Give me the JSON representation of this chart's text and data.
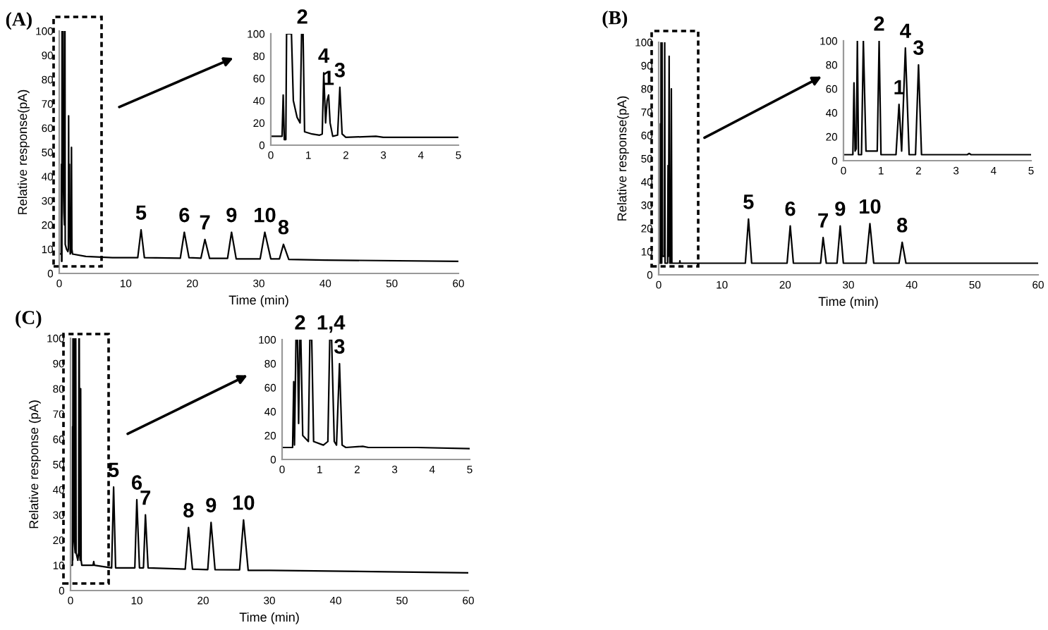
{
  "chart_data": [
    {
      "type": "line",
      "title": "(A)",
      "xlabel": "Time (min)",
      "ylabel": "Relative response(pA)",
      "color": "#000000",
      "xlim": [
        0,
        60
      ],
      "ylim": [
        0,
        100
      ],
      "xticks": [
        0,
        10,
        20,
        30,
        40,
        50,
        60
      ],
      "yticks": [
        0,
        10,
        20,
        30,
        40,
        50,
        60,
        70,
        80,
        90,
        100
      ],
      "x": [
        0,
        0.3,
        0.33,
        0.36,
        0.4,
        0.42,
        0.55,
        0.6,
        0.7,
        0.78,
        0.82,
        0.86,
        0.9,
        1.1,
        1.3,
        1.37,
        1.41,
        1.46,
        1.5,
        1.54,
        1.58,
        1.65,
        1.78,
        1.84,
        1.9,
        2.0,
        4,
        8,
        11.8,
        12.3,
        12.8,
        18.2,
        18.8,
        19.5,
        21.3,
        21.9,
        22.6,
        25.3,
        25.9,
        26.6,
        30.2,
        30.9,
        31.8,
        33.1,
        33.7,
        34.5,
        40,
        60
      ],
      "values": [
        8,
        8,
        45,
        5,
        5,
        100,
        100,
        40,
        25,
        20,
        100,
        100,
        12,
        10,
        9,
        10,
        65,
        20,
        40,
        45,
        20,
        8,
        9,
        52,
        10,
        8,
        7,
        6.5,
        6.5,
        18,
        6.5,
        6.3,
        17,
        6.5,
        6.3,
        14,
        6.2,
        6.2,
        17,
        6,
        6,
        17,
        6,
        6,
        12,
        5.8,
        5.5,
        5
      ],
      "annotations": [
        {
          "text": "5",
          "x": 12.3,
          "y": 18
        },
        {
          "text": "6",
          "x": 18.8,
          "y": 17
        },
        {
          "text": "7",
          "x": 21.9,
          "y": 14
        },
        {
          "text": "9",
          "x": 25.9,
          "y": 17
        },
        {
          "text": "10",
          "x": 30.9,
          "y": 17
        },
        {
          "text": "8",
          "x": 33.7,
          "y": 12
        }
      ]
    },
    {
      "type": "line",
      "color": "#000000",
      "xlim": [
        0,
        5
      ],
      "ylim": [
        0,
        100
      ],
      "xticks": [
        0,
        1,
        2,
        3,
        4,
        5
      ],
      "yticks": [
        0,
        20,
        40,
        60,
        80,
        100
      ],
      "x": [
        0,
        0.3,
        0.33,
        0.36,
        0.4,
        0.42,
        0.55,
        0.6,
        0.7,
        0.78,
        0.82,
        0.86,
        0.9,
        1.1,
        1.3,
        1.37,
        1.41,
        1.46,
        1.5,
        1.54,
        1.58,
        1.65,
        1.78,
        1.84,
        1.9,
        2.0,
        2.8,
        3,
        5
      ],
      "values": [
        8,
        8,
        45,
        5,
        5,
        100,
        100,
        40,
        25,
        20,
        100,
        100,
        12,
        10,
        9,
        10,
        65,
        20,
        40,
        45,
        20,
        8,
        9,
        52,
        10,
        7,
        8,
        7,
        7
      ],
      "annotations": [
        {
          "text": "2",
          "x": 0.84,
          "y": 100
        },
        {
          "text": "4",
          "x": 1.41,
          "y": 65
        },
        {
          "text": "1",
          "x": 1.54,
          "y": 45
        },
        {
          "text": "3",
          "x": 1.84,
          "y": 52
        }
      ]
    },
    {
      "type": "line",
      "title": "(B)",
      "xlabel": "Time (min)",
      "ylabel": "Relative response(pA)",
      "color": "#000000",
      "xlim": [
        0,
        60
      ],
      "ylim": [
        0,
        100
      ],
      "xticks": [
        0,
        10,
        20,
        30,
        40,
        50,
        60
      ],
      "yticks": [
        0,
        10,
        20,
        30,
        40,
        50,
        60,
        70,
        80,
        90,
        100
      ],
      "x": [
        0,
        0.25,
        0.28,
        0.31,
        0.34,
        0.37,
        0.4,
        0.48,
        0.53,
        0.6,
        0.9,
        0.95,
        1.0,
        1.4,
        1.48,
        1.55,
        1.65,
        1.75,
        1.92,
        2.0,
        2.08,
        3.3,
        3.35,
        3.4,
        13.7,
        14.2,
        14.7,
        20.3,
        20.8,
        21.3,
        25.6,
        26,
        26.5,
        28.2,
        28.7,
        29.2,
        32.8,
        33.4,
        34,
        38,
        38.5,
        39.1,
        60
      ],
      "values": [
        5,
        5,
        65,
        8,
        10,
        100,
        5,
        5,
        100,
        8,
        8,
        100,
        5,
        5,
        47,
        8,
        94,
        5,
        5,
        80,
        5,
        5,
        6,
        5,
        5,
        24,
        5,
        5,
        21,
        5,
        5,
        16,
        5,
        5,
        21,
        5,
        5,
        22,
        5,
        5,
        14,
        5,
        5
      ],
      "annotations": [
        {
          "text": "5",
          "x": 14.2,
          "y": 24
        },
        {
          "text": "6",
          "x": 20.8,
          "y": 21
        },
        {
          "text": "7",
          "x": 26,
          "y": 16
        },
        {
          "text": "9",
          "x": 28.7,
          "y": 21
        },
        {
          "text": "10",
          "x": 33.4,
          "y": 22
        },
        {
          "text": "8",
          "x": 38.5,
          "y": 14
        }
      ]
    },
    {
      "type": "line",
      "color": "#000000",
      "xlim": [
        0,
        5
      ],
      "ylim": [
        0,
        100
      ],
      "xticks": [
        0,
        1,
        2,
        3,
        4,
        5
      ],
      "yticks": [
        0,
        20,
        40,
        60,
        80,
        100
      ],
      "x": [
        0,
        0.25,
        0.28,
        0.31,
        0.34,
        0.37,
        0.4,
        0.48,
        0.53,
        0.6,
        0.9,
        0.95,
        1.0,
        1.4,
        1.48,
        1.55,
        1.65,
        1.75,
        1.92,
        2.0,
        2.08,
        3.3,
        3.35,
        3.4,
        5
      ],
      "values": [
        5,
        5,
        65,
        8,
        10,
        100,
        5,
        5,
        100,
        8,
        8,
        100,
        5,
        5,
        47,
        8,
        94,
        5,
        5,
        80,
        5,
        5,
        6,
        5,
        5
      ],
      "annotations": [
        {
          "text": "2",
          "x": 0.95,
          "y": 100
        },
        {
          "text": "1",
          "x": 1.48,
          "y": 47
        },
        {
          "text": "4",
          "x": 1.65,
          "y": 94
        },
        {
          "text": "3",
          "x": 2.0,
          "y": 80
        }
      ]
    },
    {
      "type": "line",
      "title": "(C)",
      "xlabel": "Time (min)",
      "ylabel": "Relative response (pA)",
      "color": "#000000",
      "xlim": [
        0,
        60
      ],
      "ylim": [
        0,
        100
      ],
      "xticks": [
        0,
        10,
        20,
        30,
        40,
        50,
        60
      ],
      "yticks": [
        0,
        10,
        20,
        30,
        40,
        50,
        60,
        70,
        80,
        90,
        100
      ],
      "x": [
        0,
        0.28,
        0.31,
        0.33,
        0.37,
        0.41,
        0.44,
        0.47,
        0.5,
        0.55,
        0.7,
        0.74,
        0.79,
        0.84,
        1.1,
        1.22,
        1.27,
        1.32,
        1.39,
        1.45,
        1.53,
        1.6,
        1.7,
        2,
        3.4,
        3.5,
        3.6,
        6.2,
        6.5,
        6.8,
        9.7,
        10,
        10.4,
        11,
        11.3,
        11.7,
        17.3,
        17.8,
        18.4,
        20.7,
        21.2,
        21.8,
        25.5,
        26.1,
        26.8,
        30,
        60
      ],
      "values": [
        10,
        10,
        65,
        12,
        100,
        100,
        30,
        100,
        100,
        20,
        15,
        100,
        100,
        15,
        12,
        15,
        100,
        100,
        15,
        12,
        80,
        12,
        10,
        10,
        10,
        11.5,
        10,
        9,
        41,
        9,
        9,
        36,
        9,
        9,
        30,
        9,
        8.5,
        25,
        8.5,
        8.3,
        27,
        8.3,
        8.2,
        28,
        8,
        8,
        7
      ],
      "annotations": [
        {
          "text": "5",
          "x": 6.5,
          "y": 41
        },
        {
          "text": "6",
          "x": 10,
          "y": 36
        },
        {
          "text": "7",
          "x": 11.3,
          "y": 30
        },
        {
          "text": "8",
          "x": 17.8,
          "y": 25
        },
        {
          "text": "9",
          "x": 21.2,
          "y": 27
        },
        {
          "text": "10",
          "x": 26.1,
          "y": 28
        }
      ]
    },
    {
      "type": "line",
      "color": "#000000",
      "xlim": [
        0,
        5
      ],
      "ylim": [
        0,
        100
      ],
      "xticks": [
        0,
        1,
        2,
        3,
        4,
        5
      ],
      "yticks": [
        0,
        20,
        40,
        60,
        80,
        100
      ],
      "x": [
        0,
        0.28,
        0.31,
        0.33,
        0.37,
        0.41,
        0.44,
        0.47,
        0.5,
        0.55,
        0.7,
        0.74,
        0.79,
        0.84,
        1.1,
        1.22,
        1.27,
        1.32,
        1.39,
        1.45,
        1.53,
        1.6,
        1.7,
        2.15,
        2.3,
        3.6,
        5
      ],
      "values": [
        10,
        10,
        65,
        12,
        100,
        100,
        30,
        100,
        100,
        20,
        15,
        100,
        100,
        15,
        12,
        15,
        100,
        100,
        15,
        12,
        80,
        12,
        10,
        11,
        10,
        10,
        9
      ],
      "annotations": [
        {
          "text": "2",
          "x": 0.48,
          "y": 100
        },
        {
          "text": "1,4",
          "x": 1.3,
          "y": 100
        },
        {
          "text": "3",
          "x": 1.53,
          "y": 80
        }
      ]
    }
  ]
}
